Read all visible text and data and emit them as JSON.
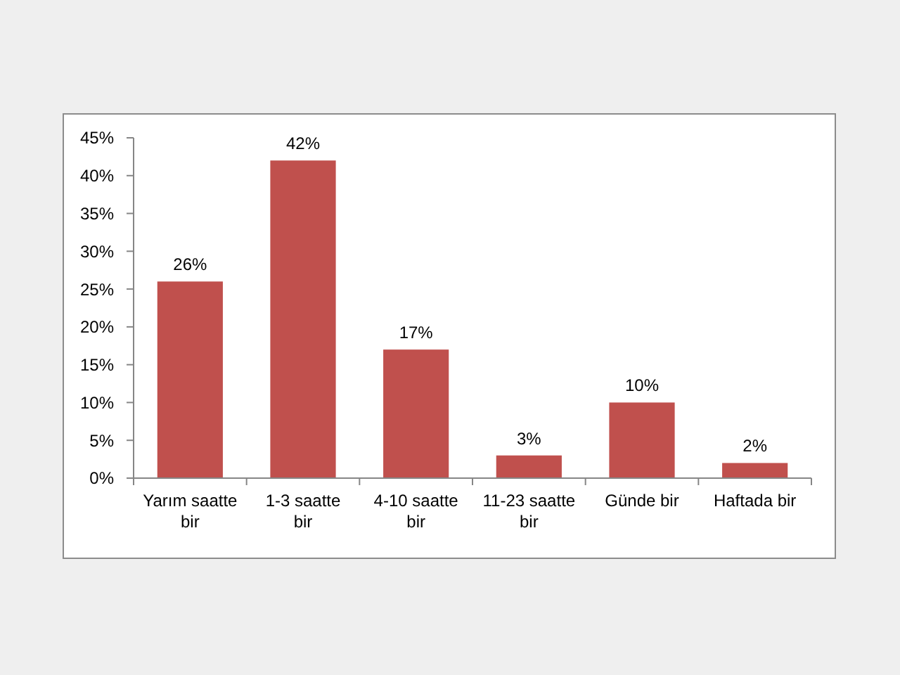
{
  "chart_data": {
    "type": "bar",
    "categories": [
      "Yarım saatte bir",
      "1-3 saatte bir",
      "4-10 saatte bir",
      "11-23 saatte bir",
      "Günde bir",
      "Haftada bir"
    ],
    "values": [
      26,
      42,
      17,
      3,
      10,
      2
    ],
    "color": "#c0504d",
    "value_labels": [
      "26%",
      "42%",
      "17%",
      "3%",
      "10%",
      "2%"
    ],
    "ylim": [
      0,
      45
    ],
    "yticks": [
      {
        "value": 0,
        "label": "0%"
      },
      {
        "value": 5,
        "label": "5%"
      },
      {
        "value": 10,
        "label": "10%"
      },
      {
        "value": 15,
        "label": "15%"
      },
      {
        "value": 20,
        "label": "20%"
      },
      {
        "value": 25,
        "label": "25%"
      },
      {
        "value": 30,
        "label": "30%"
      },
      {
        "value": 35,
        "label": "35%"
      },
      {
        "value": 40,
        "label": "40%"
      },
      {
        "value": 45,
        "label": "45%"
      }
    ],
    "grid": false
  }
}
